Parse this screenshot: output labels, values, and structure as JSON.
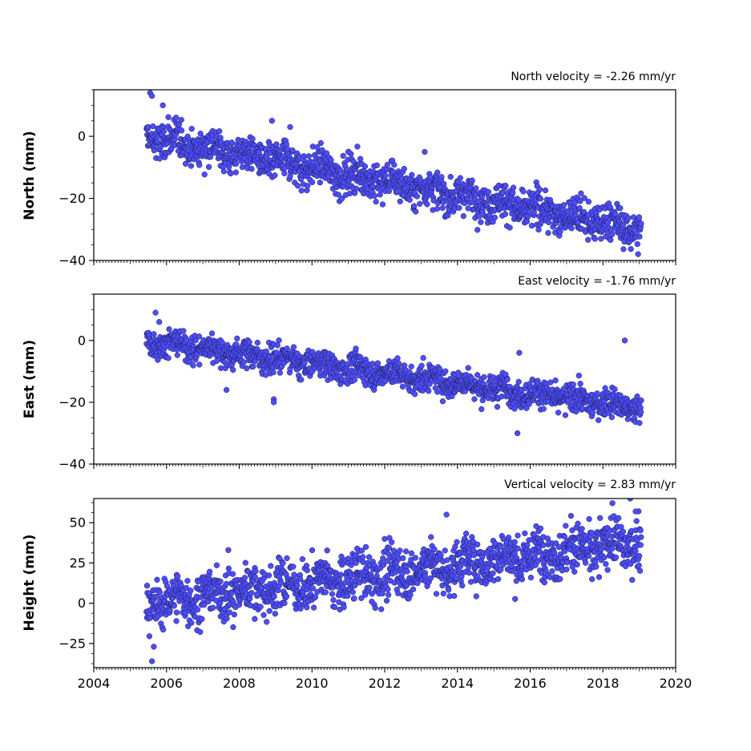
{
  "chart_data": [
    {
      "type": "scatter",
      "title": "North velocity = -2.26 mm/yr",
      "xlabel": "",
      "ylabel": "North (mm)",
      "xlim": [
        2004,
        2020
      ],
      "ylim": [
        -40,
        15
      ],
      "yticks": [
        0,
        -20,
        -40
      ],
      "xticks": [
        2004,
        2006,
        2008,
        2010,
        2012,
        2014,
        2016,
        2018,
        2020
      ],
      "x_start": 2005.45,
      "x_end": 2019.05,
      "series": [
        {
          "trend_start": 0,
          "trend_end": -30,
          "scatter_sd": 3.0,
          "outliers": [
            [
              2005.55,
              14
            ],
            [
              2005.6,
              13
            ],
            [
              2005.9,
              10
            ],
            [
              2008.9,
              5
            ],
            [
              2009.4,
              3
            ],
            [
              2013.1,
              -5
            ],
            [
              2011.0,
              -5
            ]
          ]
        }
      ],
      "grid": false,
      "legend": "none",
      "color": "#4d4dff"
    },
    {
      "type": "scatter",
      "title": "East velocity = -1.76 mm/yr",
      "xlabel": "",
      "ylabel": "East (mm)",
      "xlim": [
        2004,
        2020
      ],
      "ylim": [
        -40,
        15
      ],
      "yticks": [
        0,
        -20,
        -40
      ],
      "xticks": [
        2004,
        2006,
        2008,
        2010,
        2012,
        2014,
        2016,
        2018,
        2020
      ],
      "x_start": 2005.45,
      "x_end": 2019.05,
      "series": [
        {
          "trend_start": 0,
          "trend_end": -22,
          "scatter_sd": 2.2,
          "outliers": [
            [
              2005.7,
              9
            ],
            [
              2005.8,
              6
            ],
            [
              2008.95,
              -19
            ],
            [
              2008.95,
              -20
            ],
            [
              2015.65,
              -30
            ],
            [
              2015.7,
              -4
            ],
            [
              2018.6,
              0
            ],
            [
              2007.65,
              -16
            ]
          ]
        }
      ],
      "grid": false,
      "legend": "none",
      "color": "#4d4dff"
    },
    {
      "type": "scatter",
      "title": "Vertical velocity = 2.83 mm/yr",
      "xlabel": "",
      "ylabel": "Height (mm)",
      "xlim": [
        2004,
        2020
      ],
      "ylim": [
        -40,
        65
      ],
      "yticks": [
        50,
        25,
        0,
        -25
      ],
      "xticks": [
        2004,
        2006,
        2008,
        2010,
        2012,
        2014,
        2016,
        2018,
        2020
      ],
      "x_start": 2005.45,
      "x_end": 2019.05,
      "series": [
        {
          "trend_start": 0,
          "trend_end": 38,
          "scatter_sd": 7.5,
          "outliers": [
            [
              2005.6,
              -36
            ],
            [
              2005.65,
              -27
            ],
            [
              2013.7,
              55
            ],
            [
              2018.75,
              65
            ],
            [
              2018.9,
              57
            ],
            [
              2007.7,
              33
            ]
          ]
        }
      ],
      "grid": false,
      "legend": "none",
      "color": "#4d4dff"
    }
  ]
}
